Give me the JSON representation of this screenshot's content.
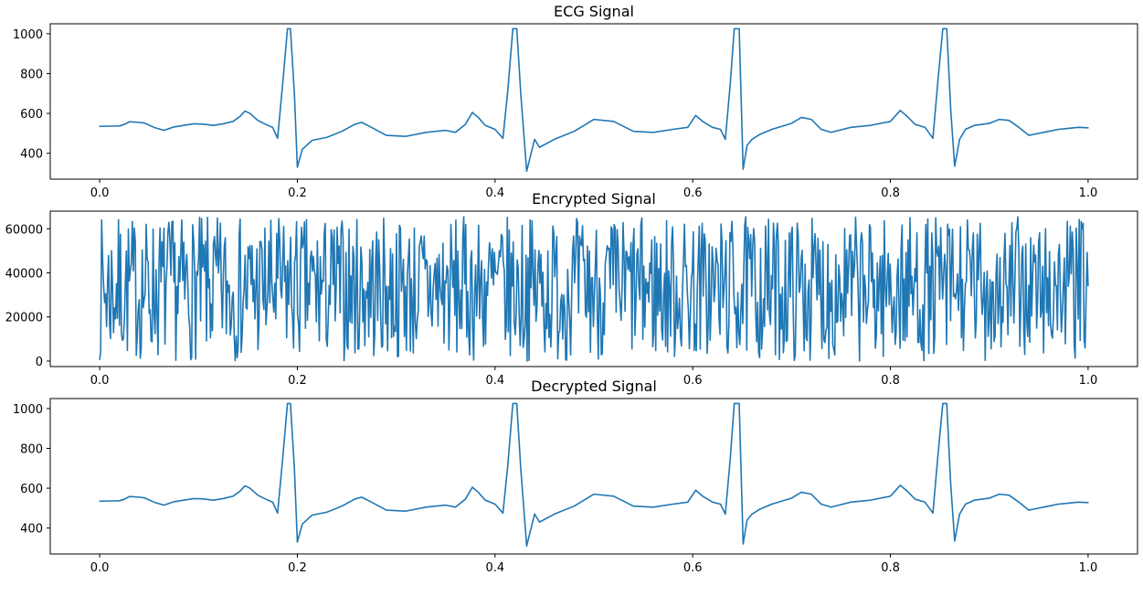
{
  "figure": {
    "background": "#ffffff",
    "line_color": "#1f77b4"
  },
  "chart_data": [
    {
      "type": "line",
      "title": "ECG Signal",
      "xlabel": "",
      "ylabel": "",
      "xlim": [
        -0.05,
        1.05
      ],
      "ylim": [
        270,
        1050
      ],
      "xticks": [
        0.0,
        0.2,
        0.4,
        0.6,
        0.8,
        1.0
      ],
      "xtick_labels": [
        "0.0",
        "0.2",
        "0.4",
        "0.6",
        "0.8",
        "1.0"
      ],
      "yticks": [
        400,
        600,
        800,
        1000
      ],
      "ytick_labels": [
        "400",
        "600",
        "800",
        "1000"
      ],
      "grid": false,
      "series": [
        {
          "x": [
            0.0,
            0.02,
            0.025,
            0.03,
            0.04,
            0.045,
            0.055,
            0.065,
            0.075,
            0.085,
            0.095,
            0.105,
            0.115,
            0.125,
            0.135,
            0.142,
            0.147,
            0.152,
            0.16,
            0.168,
            0.175,
            0.18,
            0.185,
            0.19,
            0.193,
            0.197,
            0.2,
            0.205,
            0.215,
            0.23,
            0.245,
            0.258,
            0.265,
            0.275,
            0.29,
            0.31,
            0.33,
            0.35,
            0.36,
            0.37,
            0.377,
            0.383,
            0.39,
            0.4,
            0.408,
            0.413,
            0.418,
            0.422,
            0.426,
            0.432,
            0.44,
            0.445,
            0.46,
            0.48,
            0.49,
            0.5,
            0.52,
            0.54,
            0.56,
            0.58,
            0.595,
            0.603,
            0.61,
            0.62,
            0.628,
            0.633,
            0.638,
            0.642,
            0.647,
            0.651,
            0.655,
            0.66,
            0.668,
            0.68,
            0.7,
            0.71,
            0.72,
            0.73,
            0.74,
            0.76,
            0.78,
            0.8,
            0.81,
            0.817,
            0.825,
            0.835,
            0.843,
            0.848,
            0.853,
            0.857,
            0.861,
            0.865,
            0.87,
            0.876,
            0.885,
            0.9,
            0.91,
            0.92,
            0.93,
            0.94,
            0.95,
            0.96,
            0.97,
            0.98,
            0.99,
            1.0
          ],
          "y": [
            535,
            537,
            545,
            558,
            555,
            552,
            530,
            515,
            532,
            540,
            548,
            546,
            540,
            548,
            560,
            585,
            612,
            600,
            565,
            545,
            530,
            475,
            740,
            1025,
            1025,
            700,
            330,
            420,
            465,
            480,
            510,
            545,
            555,
            530,
            490,
            485,
            505,
            515,
            505,
            545,
            605,
            580,
            540,
            520,
            475,
            720,
            1025,
            1025,
            700,
            310,
            470,
            430,
            470,
            510,
            540,
            570,
            560,
            510,
            505,
            520,
            530,
            590,
            560,
            530,
            520,
            470,
            750,
            1025,
            1025,
            320,
            440,
            470,
            495,
            520,
            550,
            580,
            570,
            520,
            505,
            530,
            540,
            560,
            615,
            585,
            545,
            530,
            475,
            760,
            1025,
            1025,
            620,
            335,
            470,
            520,
            540,
            550,
            570,
            565,
            530,
            490,
            500,
            510,
            520,
            525,
            530,
            528
          ]
        }
      ]
    },
    {
      "type": "line",
      "title": "Encrypted Signal",
      "xlabel": "",
      "ylabel": "",
      "xlim": [
        -0.05,
        1.05
      ],
      "ylim": [
        -2500,
        68000
      ],
      "xticks": [
        0.0,
        0.2,
        0.4,
        0.6,
        0.8,
        1.0
      ],
      "xtick_labels": [
        "0.0",
        "0.2",
        "0.4",
        "0.6",
        "0.8",
        "1.0"
      ],
      "yticks": [
        0,
        20000,
        40000,
        60000
      ],
      "ytick_labels": [
        "0",
        "20000",
        "40000",
        "60000"
      ],
      "grid": false,
      "series": [
        {
          "generated": "pseudo-random",
          "n_points": 1000,
          "y_range": [
            0,
            65535
          ],
          "seed": 7
        }
      ]
    },
    {
      "type": "line",
      "title": "Decrypted Signal",
      "xlabel": "",
      "ylabel": "",
      "xlim": [
        -0.05,
        1.05
      ],
      "ylim": [
        270,
        1050
      ],
      "xticks": [
        0.0,
        0.2,
        0.4,
        0.6,
        0.8,
        1.0
      ],
      "xtick_labels": [
        "0.0",
        "0.2",
        "0.4",
        "0.6",
        "0.8",
        "1.0"
      ],
      "yticks": [
        400,
        600,
        800,
        1000
      ],
      "ytick_labels": [
        "400",
        "600",
        "800",
        "1000"
      ],
      "grid": false,
      "series": [
        {
          "x": [
            0.0,
            0.02,
            0.025,
            0.03,
            0.04,
            0.045,
            0.055,
            0.065,
            0.075,
            0.085,
            0.095,
            0.105,
            0.115,
            0.125,
            0.135,
            0.142,
            0.147,
            0.152,
            0.16,
            0.168,
            0.175,
            0.18,
            0.185,
            0.19,
            0.193,
            0.197,
            0.2,
            0.205,
            0.215,
            0.23,
            0.245,
            0.258,
            0.265,
            0.275,
            0.29,
            0.31,
            0.33,
            0.35,
            0.36,
            0.37,
            0.377,
            0.383,
            0.39,
            0.4,
            0.408,
            0.413,
            0.418,
            0.422,
            0.426,
            0.432,
            0.44,
            0.445,
            0.46,
            0.48,
            0.49,
            0.5,
            0.52,
            0.54,
            0.56,
            0.58,
            0.595,
            0.603,
            0.61,
            0.62,
            0.628,
            0.633,
            0.638,
            0.642,
            0.647,
            0.651,
            0.655,
            0.66,
            0.668,
            0.68,
            0.7,
            0.71,
            0.72,
            0.73,
            0.74,
            0.76,
            0.78,
            0.8,
            0.81,
            0.817,
            0.825,
            0.835,
            0.843,
            0.848,
            0.853,
            0.857,
            0.861,
            0.865,
            0.87,
            0.876,
            0.885,
            0.9,
            0.91,
            0.92,
            0.93,
            0.94,
            0.95,
            0.96,
            0.97,
            0.98,
            0.99,
            1.0
          ],
          "y": [
            535,
            537,
            545,
            558,
            555,
            552,
            530,
            515,
            532,
            540,
            548,
            546,
            540,
            548,
            560,
            585,
            612,
            600,
            565,
            545,
            530,
            475,
            740,
            1025,
            1025,
            700,
            330,
            420,
            465,
            480,
            510,
            545,
            555,
            530,
            490,
            485,
            505,
            515,
            505,
            545,
            605,
            580,
            540,
            520,
            475,
            720,
            1025,
            1025,
            700,
            310,
            470,
            430,
            470,
            510,
            540,
            570,
            560,
            510,
            505,
            520,
            530,
            590,
            560,
            530,
            520,
            470,
            750,
            1025,
            1025,
            320,
            440,
            470,
            495,
            520,
            550,
            580,
            570,
            520,
            505,
            530,
            540,
            560,
            615,
            585,
            545,
            530,
            475,
            760,
            1025,
            1025,
            620,
            335,
            470,
            520,
            540,
            550,
            570,
            565,
            530,
            490,
            500,
            510,
            520,
            525,
            530,
            528
          ]
        }
      ]
    }
  ]
}
